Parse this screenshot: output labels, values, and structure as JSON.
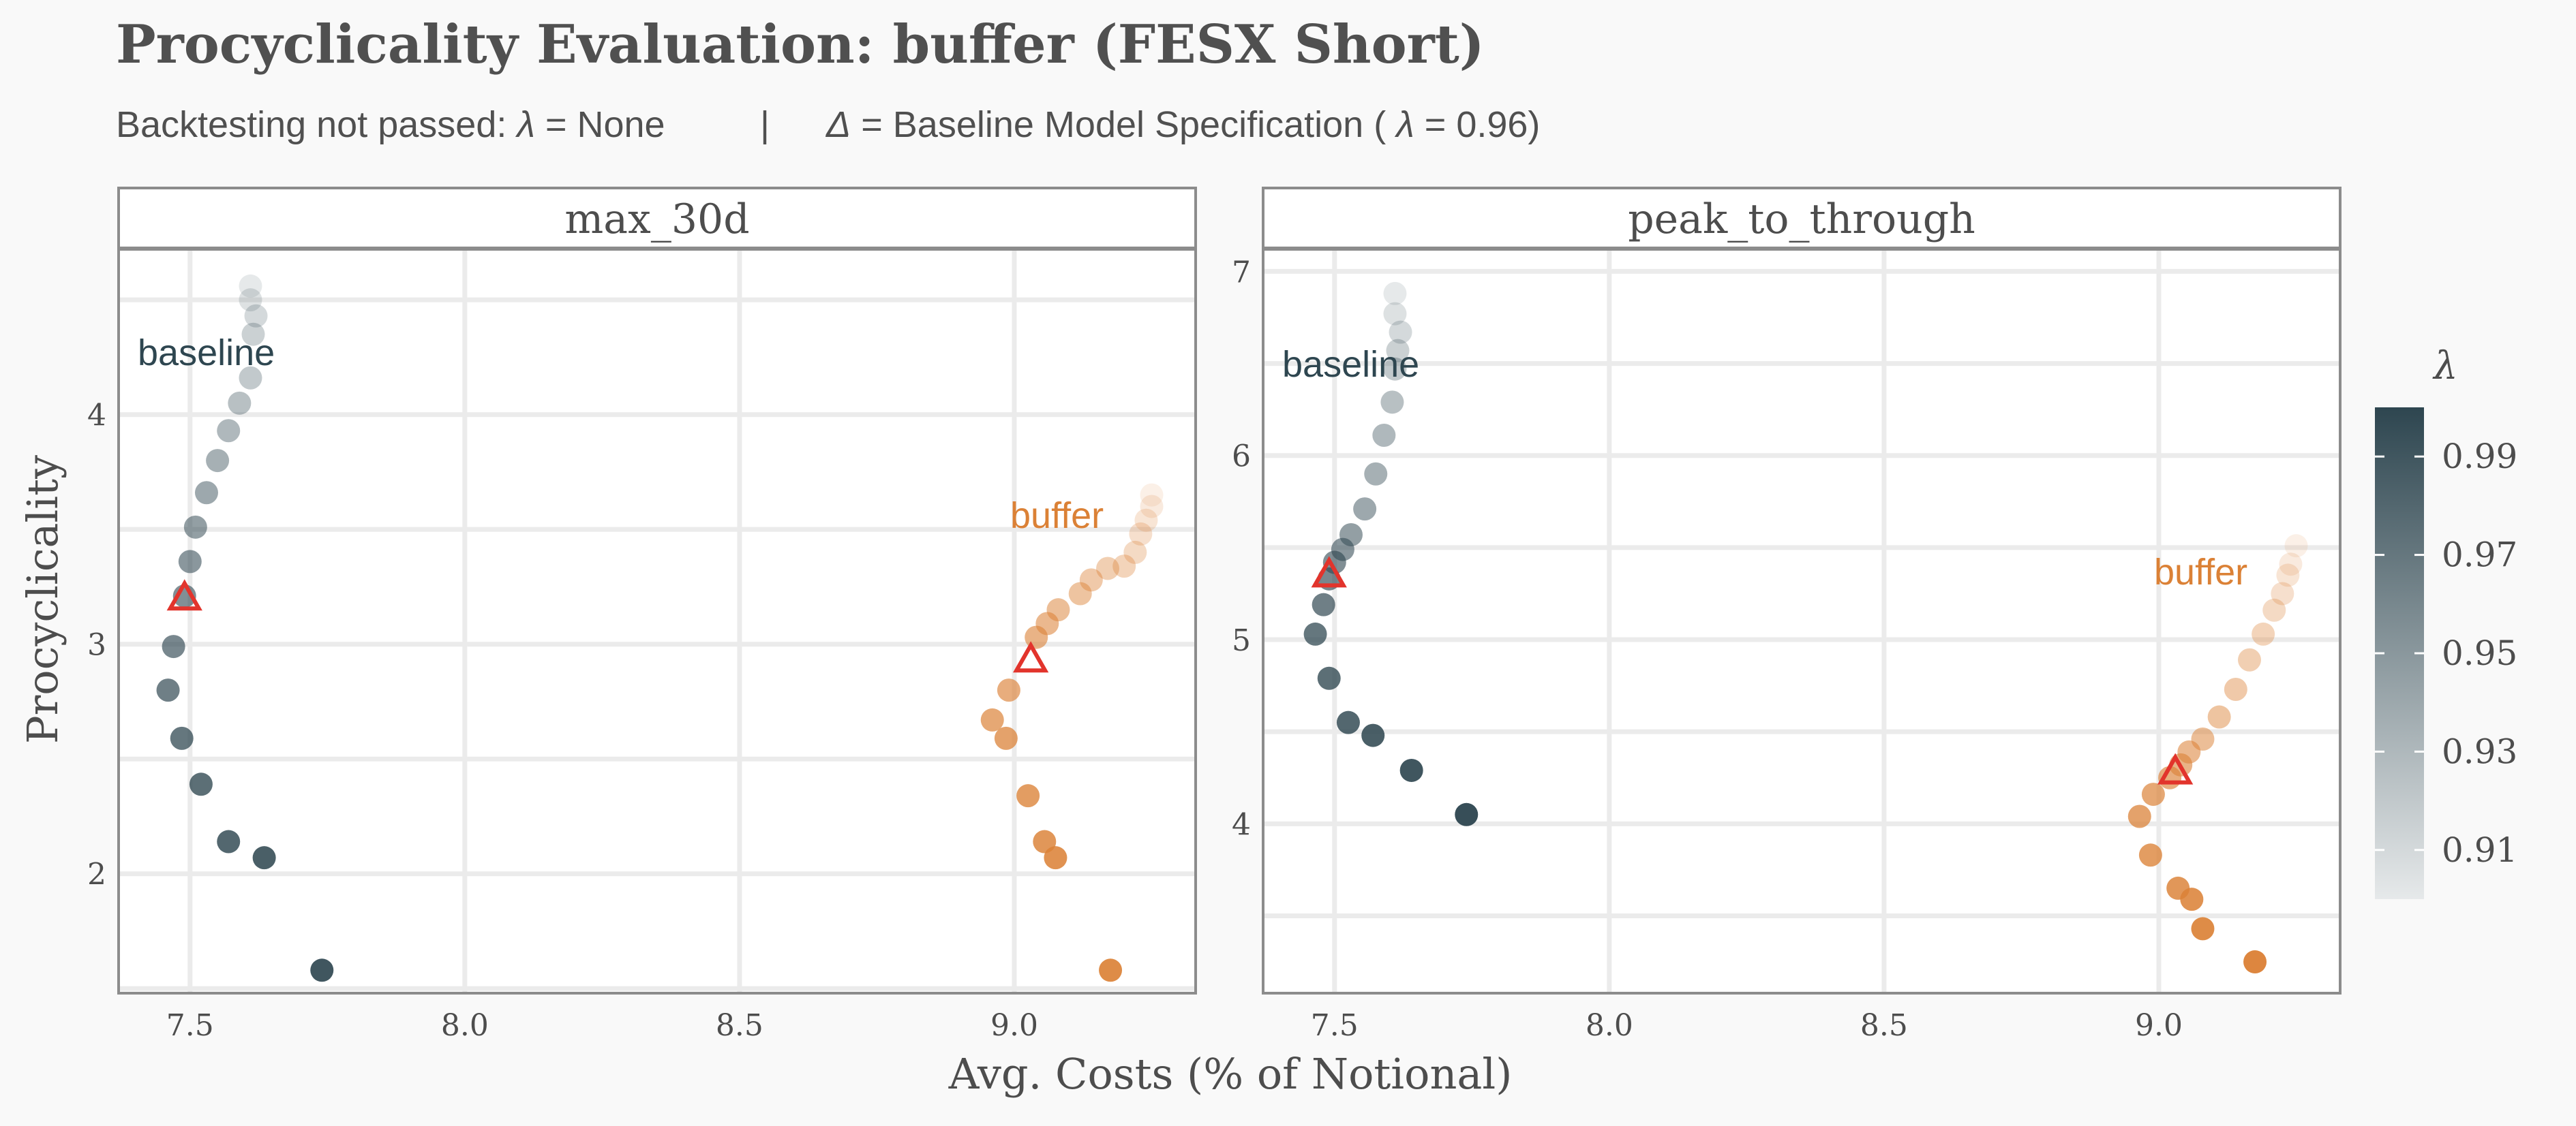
{
  "title": "Procyclicality Evaluation: buffer (FESX Short)",
  "subtitle_parts": {
    "left_text": "Backtesting not passed: ",
    "left_lambda": "λ",
    "left_value": " = None",
    "separator": "|",
    "right_delta": "Δ",
    "right_text": " = Baseline Model Specification (",
    "right_lambda": "λ",
    "right_value": " = 0.96)"
  },
  "colors": {
    "baseline": "#2e4650",
    "buffer": "#db8136",
    "marker": "#e2342c",
    "baseline_label": "#2e4650",
    "buffer_label": "#db8136"
  },
  "chart_data": {
    "type": "scatter",
    "xlabel": "Avg. Costs (% of Notional)",
    "ylabel": "Procyclicality",
    "legend": {
      "title": "λ",
      "placement": "right",
      "ticks": [
        "0.99",
        "0.97",
        "0.95",
        "0.93",
        "0.91"
      ],
      "tick_values": [
        0.99,
        0.97,
        0.95,
        0.93,
        0.91
      ],
      "range": [
        0.9,
        1.0
      ]
    },
    "xlim": [
      7.37,
      9.33
    ],
    "x_ticks": [
      7.5,
      8.0,
      8.5,
      9.0
    ],
    "x_tick_labels": [
      "7.5",
      "8.0",
      "8.5",
      "9.0"
    ],
    "panels": [
      {
        "strip": "max_30d",
        "ylim": [
          1.48,
          4.72
        ],
        "y_ticks": [
          2,
          3,
          4
        ],
        "y_tick_labels": [
          "2",
          "3",
          "4"
        ],
        "labels": {
          "baseline": "baseline",
          "buffer": "buffer"
        },
        "baseline_spec": {
          "baseline": [
            7.49,
            3.2
          ],
          "buffer": [
            9.03,
            2.93
          ]
        },
        "series": [
          {
            "name": "baseline",
            "points": [
              [
                7.61,
                4.56,
                0.9
              ],
              [
                7.61,
                4.5,
                0.905
              ],
              [
                7.62,
                4.43,
                0.91
              ],
              [
                7.615,
                4.35,
                0.915
              ],
              [
                7.61,
                4.16,
                0.92
              ],
              [
                7.59,
                4.05,
                0.925
              ],
              [
                7.57,
                3.93,
                0.93
              ],
              [
                7.55,
                3.8,
                0.935
              ],
              [
                7.53,
                3.66,
                0.94
              ],
              [
                7.51,
                3.51,
                0.945
              ],
              [
                7.5,
                3.36,
                0.95
              ],
              [
                7.49,
                3.21,
                0.955
              ],
              [
                7.47,
                2.99,
                0.96
              ],
              [
                7.46,
                2.8,
                0.965
              ],
              [
                7.485,
                2.59,
                0.97
              ],
              [
                7.52,
                2.39,
                0.975
              ],
              [
                7.57,
                2.14,
                0.98
              ],
              [
                7.635,
                2.07,
                0.985
              ],
              [
                7.74,
                1.58,
                0.99
              ]
            ]
          },
          {
            "name": "buffer",
            "points": [
              [
                9.25,
                3.65,
                0.9
              ],
              [
                9.25,
                3.6,
                0.905
              ],
              [
                9.24,
                3.54,
                0.91
              ],
              [
                9.23,
                3.48,
                0.915
              ],
              [
                9.22,
                3.4,
                0.92
              ],
              [
                9.2,
                3.34,
                0.925
              ],
              [
                9.17,
                3.33,
                0.93
              ],
              [
                9.14,
                3.28,
                0.935
              ],
              [
                9.12,
                3.22,
                0.94
              ],
              [
                9.08,
                3.15,
                0.945
              ],
              [
                9.06,
                3.09,
                0.95
              ],
              [
                9.04,
                3.03,
                0.955
              ],
              [
                8.99,
                2.8,
                0.96
              ],
              [
                8.96,
                2.67,
                0.965
              ],
              [
                8.985,
                2.59,
                0.97
              ],
              [
                9.025,
                2.34,
                0.975
              ],
              [
                9.055,
                2.14,
                0.98
              ],
              [
                9.075,
                2.07,
                0.985
              ],
              [
                9.175,
                1.58,
                0.99
              ]
            ]
          }
        ]
      },
      {
        "strip": "peak_to_through",
        "ylim": [
          3.08,
          7.12
        ],
        "y_ticks": [
          4,
          5,
          6,
          7
        ],
        "y_tick_labels": [
          "4",
          "5",
          "6",
          "7"
        ],
        "labels": {
          "baseline": "baseline",
          "buffer": "buffer"
        },
        "baseline_spec": {
          "baseline": [
            7.49,
            5.35
          ],
          "buffer": [
            9.03,
            4.28
          ]
        },
        "series": [
          {
            "name": "baseline",
            "points": [
              [
                7.61,
                6.88,
                0.9
              ],
              [
                7.61,
                6.77,
                0.905
              ],
              [
                7.62,
                6.67,
                0.91
              ],
              [
                7.615,
                6.57,
                0.915
              ],
              [
                7.61,
                6.47,
                0.92
              ],
              [
                7.605,
                6.29,
                0.925
              ],
              [
                7.59,
                6.11,
                0.93
              ],
              [
                7.575,
                5.9,
                0.935
              ],
              [
                7.555,
                5.71,
                0.94
              ],
              [
                7.53,
                5.57,
                0.945
              ],
              [
                7.515,
                5.49,
                0.95
              ],
              [
                7.5,
                5.42,
                0.955
              ],
              [
                7.49,
                5.33,
                0.96
              ],
              [
                7.48,
                5.19,
                0.965
              ],
              [
                7.465,
                5.03,
                0.97
              ],
              [
                7.49,
                4.79,
                0.975
              ],
              [
                7.525,
                4.55,
                0.98
              ],
              [
                7.57,
                4.48,
                0.985
              ],
              [
                7.64,
                4.29,
                0.99
              ],
              [
                7.74,
                4.05,
                0.995
              ]
            ]
          },
          {
            "name": "buffer",
            "points": [
              [
                9.25,
                5.51,
                0.9
              ],
              [
                9.24,
                5.41,
                0.905
              ],
              [
                9.235,
                5.35,
                0.91
              ],
              [
                9.225,
                5.25,
                0.915
              ],
              [
                9.21,
                5.16,
                0.92
              ],
              [
                9.19,
                5.03,
                0.925
              ],
              [
                9.165,
                4.89,
                0.93
              ],
              [
                9.14,
                4.73,
                0.935
              ],
              [
                9.11,
                4.58,
                0.94
              ],
              [
                9.08,
                4.46,
                0.945
              ],
              [
                9.055,
                4.39,
                0.95
              ],
              [
                9.04,
                4.32,
                0.955
              ],
              [
                9.02,
                4.25,
                0.96
              ],
              [
                8.99,
                4.16,
                0.965
              ],
              [
                8.965,
                4.04,
                0.97
              ],
              [
                8.985,
                3.83,
                0.975
              ],
              [
                9.035,
                3.65,
                0.98
              ],
              [
                9.06,
                3.59,
                0.985
              ],
              [
                9.08,
                3.43,
                0.99
              ],
              [
                9.175,
                3.25,
                0.995
              ]
            ]
          }
        ]
      }
    ]
  }
}
